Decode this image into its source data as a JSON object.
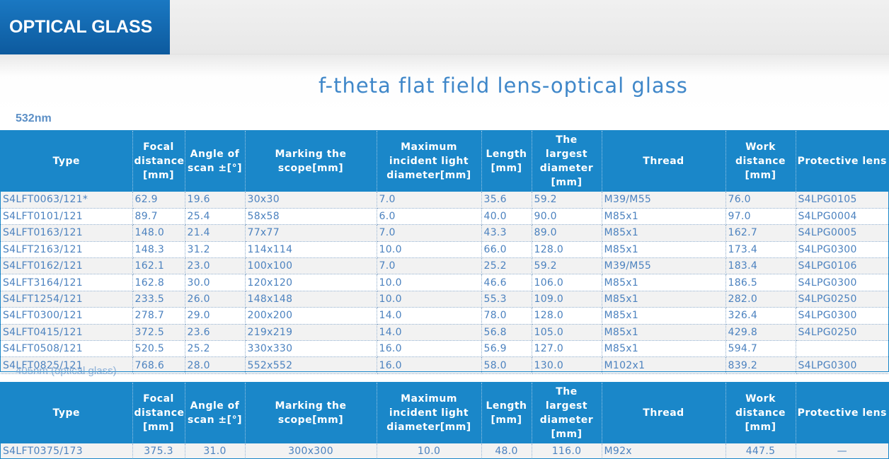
{
  "header": {
    "brand": "OPTICAL GLASS"
  },
  "page_title": "f-theta flat field lens-optical glass",
  "sections": [
    {
      "label": "532nm",
      "columns": [
        "Type",
        "Focal distance [mm]",
        "Angle of scan ±[°]",
        "Marking the scope[mm]",
        "Maximum incident light diameter[mm]",
        "Length [mm]",
        "The largest diameter [mm]",
        "Thread",
        "Work distance [mm]",
        "Protective lens"
      ],
      "rows": [
        [
          "S4LFT0063/121*",
          "62.9",
          "19.6",
          "30x30",
          "7.0",
          "35.6",
          "59.2",
          "M39/M55",
          "76.0",
          "S4LPG0105"
        ],
        [
          "S4LFT0101/121",
          "89.7",
          "25.4",
          "58x58",
          "6.0",
          "40.0",
          "90.0",
          "M85x1",
          "97.0",
          "S4LPG0004"
        ],
        [
          "S4LFT0163/121",
          "148.0",
          "21.4",
          "77x77",
          "7.0",
          "43.3",
          "89.0",
          "M85x1",
          "162.7",
          "S4LPG0005"
        ],
        [
          "S4LFT2163/121",
          "148.3",
          "31.2",
          "114x114",
          "10.0",
          "66.0",
          "128.0",
          "M85x1",
          "173.4",
          "S4LPG0300"
        ],
        [
          "S4LFT0162/121",
          "162.1",
          "23.0",
          "100x100",
          "7.0",
          "25.2",
          "59.2",
          "M39/M55",
          "183.4",
          "S4LPG0106"
        ],
        [
          "S4LFT3164/121",
          "162.8",
          "30.0",
          "120x120",
          "10.0",
          "46.6",
          "106.0",
          "M85x1",
          "186.5",
          "S4LPG0300"
        ],
        [
          "S4LFT1254/121",
          "233.5",
          "26.0",
          "148x148",
          "10.0",
          "55.3",
          "109.0",
          "M85x1",
          "282.0",
          "S4LPG0250"
        ],
        [
          "S4LFT0300/121",
          "278.7",
          "29.0",
          "200x200",
          "14.0",
          "78.0",
          "128.0",
          "M85x1",
          "326.4",
          "S4LPG0300"
        ],
        [
          "S4LFT0415/121",
          "372.5",
          "23.6",
          "219x219",
          "14.0",
          "56.8",
          "105.0",
          "M85x1",
          "429.8",
          "S4LPG0250"
        ],
        [
          "S4LFT0508/121",
          "520.5",
          "25.2",
          "330x330",
          "16.0",
          "56.9",
          "127.0",
          "M85x1",
          "594.7",
          ""
        ],
        [
          "S4LFT0825/121",
          "768.6",
          "28.0",
          "552x552",
          "16.0",
          "58.0",
          "130.0",
          "M102x1",
          "839.2",
          "S4LPG0300"
        ]
      ]
    },
    {
      "label": "405nm (optical glass)",
      "rows": [
        [
          "S4LFT0375/173",
          "375.3",
          "31.0",
          "300x300",
          "10.0",
          "48.0",
          "116.0",
          "M92x",
          "447.5",
          "—"
        ]
      ]
    }
  ]
}
